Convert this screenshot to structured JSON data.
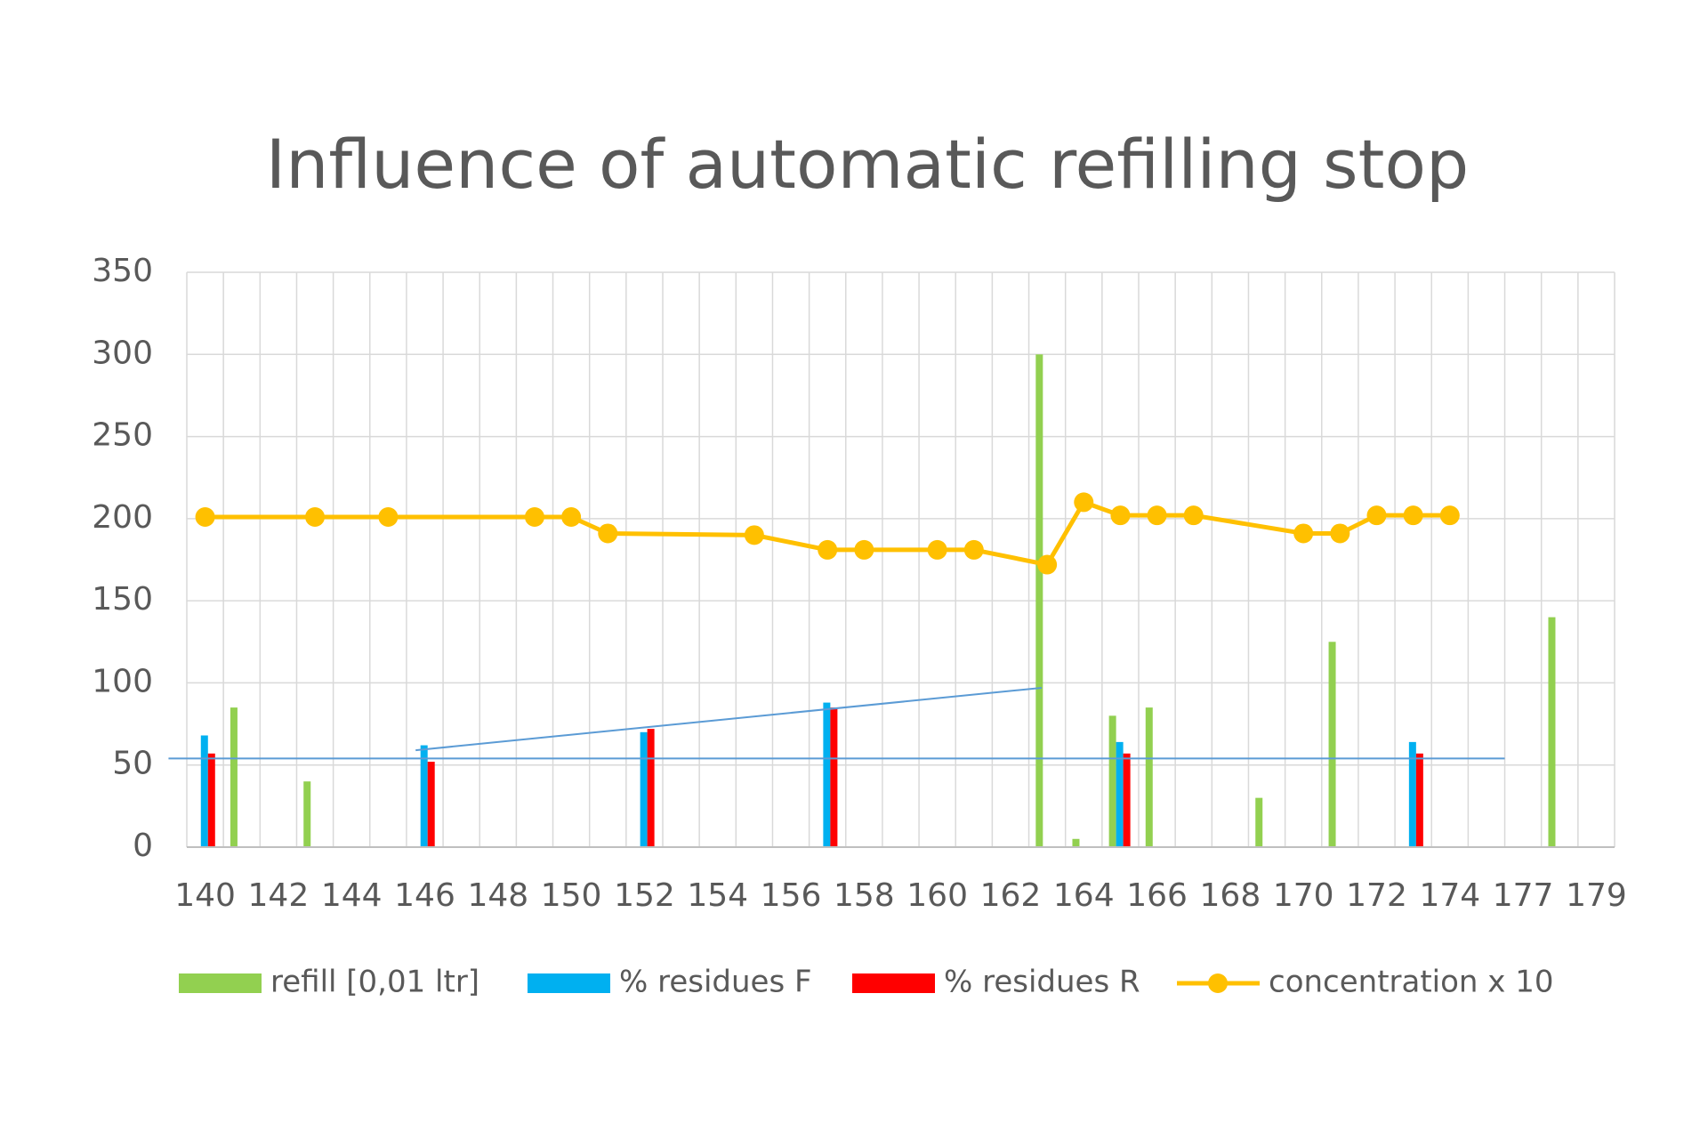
{
  "chart_data": {
    "type": "bar_line",
    "title": "Influence of automatic refilling stop",
    "categories": [
      140,
      null,
      142,
      null,
      144,
      null,
      146,
      null,
      148,
      null,
      150,
      null,
      152,
      null,
      154,
      null,
      156,
      null,
      158,
      null,
      160,
      null,
      162,
      null,
      164,
      null,
      166,
      null,
      168,
      null,
      170,
      null,
      172,
      null,
      174,
      null,
      177,
      null,
      179
    ],
    "series": [
      {
        "name": "refill [0,01 ltr]",
        "color": "#92d050",
        "kind": "bar",
        "values": [
          null,
          85,
          null,
          40,
          null,
          null,
          null,
          null,
          null,
          null,
          null,
          null,
          null,
          null,
          null,
          null,
          null,
          null,
          null,
          null,
          null,
          null,
          null,
          300,
          5,
          80,
          85,
          null,
          null,
          30,
          null,
          125,
          null,
          null,
          null,
          null,
          null,
          140,
          null
        ]
      },
      {
        "name": "% residues F",
        "color": "#00b0f0",
        "kind": "bar",
        "values": [
          68,
          null,
          null,
          null,
          null,
          null,
          62,
          null,
          null,
          null,
          null,
          null,
          70,
          null,
          null,
          null,
          null,
          88,
          null,
          null,
          null,
          null,
          null,
          null,
          null,
          64,
          null,
          null,
          null,
          null,
          null,
          null,
          null,
          64,
          null,
          null,
          null,
          null,
          null
        ]
      },
      {
        "name": "% residues R",
        "color": "#ff0000",
        "kind": "bar",
        "values": [
          57,
          null,
          null,
          null,
          null,
          null,
          52,
          null,
          null,
          null,
          null,
          null,
          72,
          null,
          null,
          null,
          null,
          85,
          null,
          null,
          null,
          null,
          null,
          null,
          null,
          57,
          null,
          null,
          null,
          null,
          null,
          null,
          null,
          57,
          null,
          null,
          null,
          null,
          null
        ]
      },
      {
        "name": "concentration x 10",
        "color": "#ffc000",
        "kind": "line",
        "span_gaps": true,
        "values": [
          201,
          null,
          null,
          201,
          null,
          201,
          null,
          null,
          null,
          201,
          201,
          191,
          null,
          null,
          null,
          190,
          null,
          181,
          181,
          null,
          181,
          181,
          null,
          172,
          210,
          202,
          202,
          202,
          null,
          null,
          191,
          191,
          202,
          202,
          202,
          null,
          null,
          null,
          null
        ]
      }
    ],
    "trendlines": [
      {
        "color": "#5b9bd5",
        "x": [
          -1,
          35.5
        ],
        "y": [
          54,
          54
        ]
      },
      {
        "color": "#5b9bd5",
        "x": [
          5.75,
          22.85
        ],
        "y": [
          59,
          97
        ]
      }
    ],
    "ylim": [
      0,
      350
    ],
    "yticks": [
      0,
      50,
      100,
      150,
      200,
      250,
      300,
      350
    ],
    "grid": true,
    "legend": "bottom"
  }
}
